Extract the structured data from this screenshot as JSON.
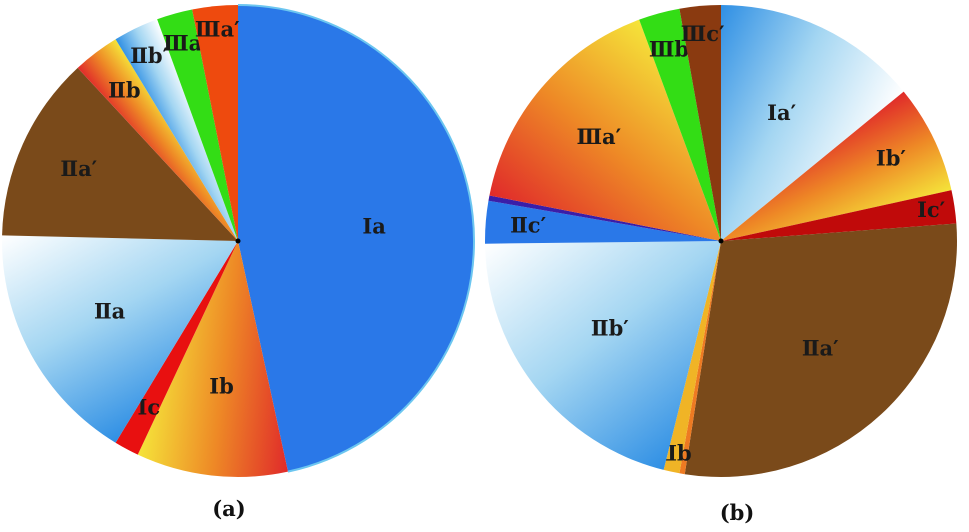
{
  "chart_data": [
    {
      "type": "pie",
      "caption": "(a)",
      "direction": "clockwise-from-top",
      "slices": [
        {
          "label": "Ⅰa",
          "value": 49.4,
          "fill": "solid",
          "color": "#2a78e8"
        },
        {
          "label": "Ⅰb",
          "value": 11.0,
          "fill": "gradient",
          "colors": [
            "#f5e43a",
            "#ee8a26",
            "#e02a2a"
          ]
        },
        {
          "label": "Ⅰc",
          "value": 1.8,
          "fill": "solid",
          "color": "#e81010"
        },
        {
          "label": "Ⅱa",
          "value": 17.7,
          "fill": "gradient",
          "colors": [
            "#ffffff",
            "#a4d6f2",
            "#2f8fe4"
          ]
        },
        {
          "label": "Ⅱa′",
          "value": 13.5,
          "fill": "solid",
          "color": "#7a4a1a"
        },
        {
          "label": "Ⅱb",
          "value": 3.4,
          "fill": "gradient",
          "colors": [
            "#f5e43a",
            "#ee8a26",
            "#e02a2a"
          ]
        },
        {
          "label": "Ⅱb′",
          "value": 3.3,
          "fill": "gradient",
          "colors": [
            "#ffffff",
            "#a4d6f2",
            "#2f8fe4"
          ]
        },
        {
          "label": "Ⅲa",
          "value": 2.6,
          "fill": "solid",
          "color": "#33dd15"
        },
        {
          "label": "Ⅲa′",
          "value": 3.3,
          "fill": "solid",
          "color": "#ee4a0e"
        }
      ]
    },
    {
      "type": "pie",
      "caption": "(b)",
      "direction": "clockwise-from-top",
      "slices": [
        {
          "label": "Ⅰa′",
          "value": 15.5,
          "fill": "gradient",
          "colors": [
            "#ffffff",
            "#a4d6f2",
            "#2f8fe4"
          ]
        },
        {
          "label": "Ⅰb′",
          "value": 8.2,
          "fill": "gradient",
          "colors": [
            "#f5e43a",
            "#ee8a26",
            "#e02a2a"
          ]
        },
        {
          "label": "Ⅰc′",
          "value": 2.5,
          "fill": "solid",
          "color": "#c00a0a"
        },
        {
          "label": "Ⅱa′",
          "value": 31.5,
          "fill": "solid",
          "color": "#7a4a1a"
        },
        {
          "label": "",
          "value": 0.4,
          "fill": "solid",
          "color": "#ee7a22"
        },
        {
          "label": "Ⅱb",
          "value": 1.2,
          "fill": "solid",
          "color": "#f0b426"
        },
        {
          "label": "Ⅱb′",
          "value": 23.0,
          "fill": "gradient",
          "colors": [
            "#ffffff",
            "#a4d6f2",
            "#2f8fe4"
          ]
        },
        {
          "label": "Ⅱc′",
          "value": 3.2,
          "fill": "solid",
          "color": "#2a78e8"
        },
        {
          "label": "",
          "value": 0.4,
          "fill": "solid",
          "color": "#3a1ea8"
        },
        {
          "label": "Ⅲa′",
          "value": 17.9,
          "fill": "gradient",
          "colors": [
            "#f5e43a",
            "#ee8a26",
            "#e02a2a"
          ]
        },
        {
          "label": "Ⅲb",
          "value": 3.1,
          "fill": "solid",
          "color": "#33dd15"
        },
        {
          "label": "Ⅲc′",
          "value": 3.1,
          "fill": "solid",
          "color": "#8a3a10"
        }
      ]
    }
  ]
}
